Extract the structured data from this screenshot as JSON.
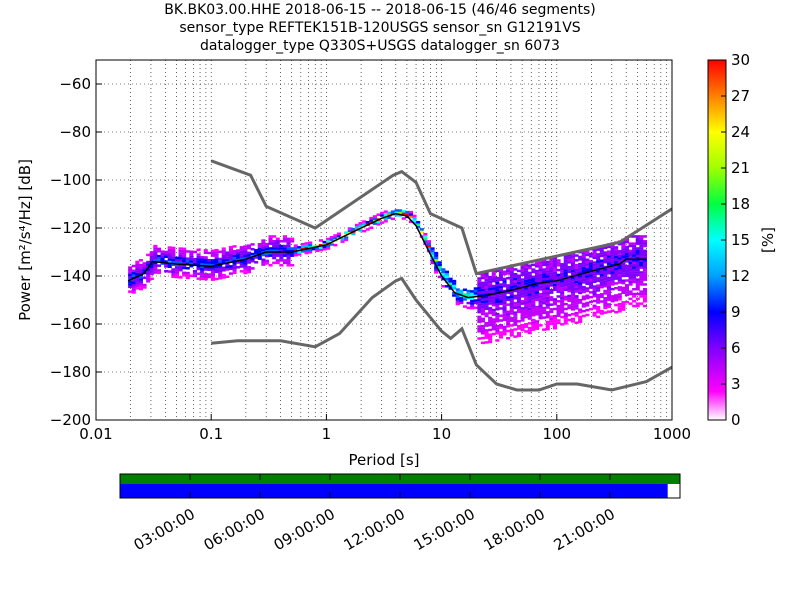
{
  "title_lines": [
    "BK.BK03.00.HHE   2018-06-15 -- 2018-06-15  (46/46 segments)",
    "sensor_type REFTEK151B-120USGS sensor_sn G12191VS",
    "datalogger_type Q330S+USGS datalogger_sn 6073"
  ],
  "chart_data": {
    "type": "heatmap",
    "xlabel": "Period [s]",
    "ylabel": "Power [m²/s⁴/Hz] [dB]",
    "xscale": "log",
    "xlim": [
      0.01,
      1000
    ],
    "ylim": [
      -200,
      -50
    ],
    "xticks": [
      0.01,
      0.1,
      1,
      10,
      100,
      1000
    ],
    "xtick_labels": [
      "0.01",
      "0.1",
      "1",
      "10",
      "100",
      "1000"
    ],
    "yticks": [
      -200,
      -180,
      -160,
      -140,
      -120,
      -100,
      -80,
      -60
    ],
    "ytick_labels": [
      "−200",
      "−180",
      "−160",
      "−140",
      "−120",
      "−100",
      "−80",
      "−60"
    ],
    "grid": true,
    "colorbar": {
      "label": "[%]",
      "min": 0,
      "max": 30,
      "ticks": [
        "0",
        "3",
        "6",
        "9",
        "12",
        "15",
        "18",
        "21",
        "24",
        "27",
        "30"
      ]
    },
    "mode_curve": [
      [
        0.019,
        -142
      ],
      [
        0.026,
        -139
      ],
      [
        0.031,
        -134
      ],
      [
        0.05,
        -135
      ],
      [
        0.1,
        -136
      ],
      [
        0.2,
        -133
      ],
      [
        0.3,
        -130
      ],
      [
        0.5,
        -130
      ],
      [
        0.8,
        -128
      ],
      [
        1,
        -127
      ],
      [
        2,
        -120
      ],
      [
        3,
        -116
      ],
      [
        4,
        -114
      ],
      [
        5,
        -115
      ],
      [
        6,
        -119
      ],
      [
        8,
        -131
      ],
      [
        10,
        -140
      ],
      [
        13,
        -147
      ],
      [
        17,
        -149
      ],
      [
        25,
        -148
      ],
      [
        40,
        -146
      ],
      [
        70,
        -143
      ],
      [
        100,
        -142
      ],
      [
        200,
        -138
      ],
      [
        350,
        -135
      ],
      [
        400,
        -133
      ],
      [
        600,
        -133
      ]
    ],
    "high_noise_model": [
      [
        0.1,
        -92
      ],
      [
        0.22,
        -98
      ],
      [
        0.3,
        -111
      ],
      [
        0.8,
        -120
      ],
      [
        3.8,
        -98
      ],
      [
        4.5,
        -96.5
      ],
      [
        6,
        -101
      ],
      [
        8,
        -114
      ],
      [
        15,
        -120
      ],
      [
        20,
        -139
      ],
      [
        350,
        -126
      ],
      [
        1000,
        -112
      ]
    ],
    "low_noise_model": [
      [
        0.1,
        -168
      ],
      [
        0.17,
        -167
      ],
      [
        0.4,
        -167
      ],
      [
        0.8,
        -169.5
      ],
      [
        1.3,
        -164
      ],
      [
        2.5,
        -149
      ],
      [
        4,
        -142
      ],
      [
        4.5,
        -141
      ],
      [
        6,
        -150
      ],
      [
        10,
        -163
      ],
      [
        12,
        -166
      ],
      [
        15,
        -162
      ],
      [
        20,
        -177
      ],
      [
        30,
        -185
      ],
      [
        45,
        -187.5
      ],
      [
        70,
        -187.5
      ],
      [
        100,
        -185
      ],
      [
        150,
        -185
      ],
      [
        300,
        -187.5
      ],
      [
        600,
        -184
      ],
      [
        1000,
        -178
      ]
    ]
  },
  "timeline": {
    "tick_labels": [
      "03:00:00",
      "06:00:00",
      "09:00:00",
      "12:00:00",
      "15:00:00",
      "18:00:00",
      "21:00:00"
    ],
    "coverage_fraction": 0.978,
    "colors": {
      "data": "#008000",
      "psd": "#0000ff"
    }
  }
}
